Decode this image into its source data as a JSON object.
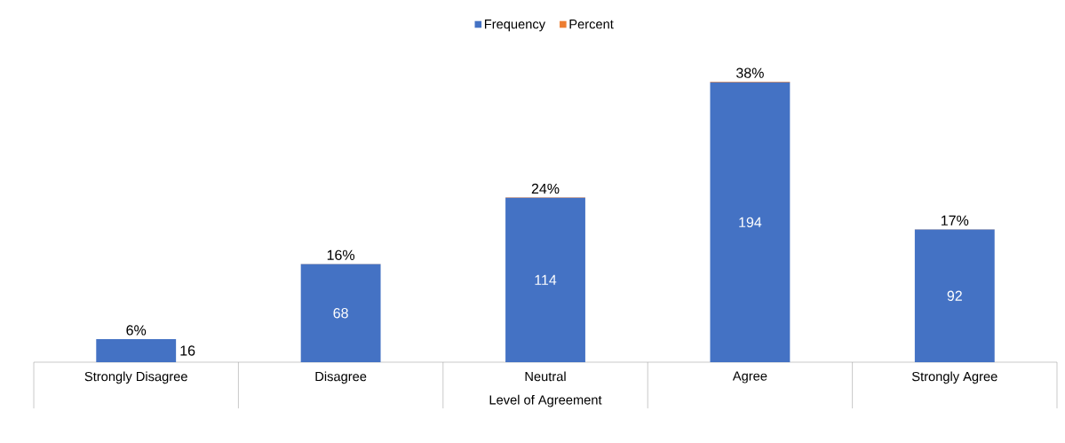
{
  "chart_data": {
    "type": "bar",
    "stacked": true,
    "xlabel": "Level of Agreement",
    "legend": "top",
    "categories": [
      "Strongly Disagree",
      "Disagree",
      "Neutral",
      "Agree",
      "Strongly Agree"
    ],
    "series": [
      {
        "name": "Frequency",
        "color": "#4472c4",
        "values": [
          16,
          68,
          114,
          194,
          92
        ],
        "value_labels": [
          "16",
          "68",
          "114",
          "194",
          "92"
        ]
      },
      {
        "name": "Percent",
        "color": "#ed7d31",
        "values": [
          0.06,
          0.16,
          0.24,
          0.38,
          0.17
        ],
        "value_labels": [
          "6%",
          "16%",
          "24%",
          "38%",
          "17%"
        ]
      }
    ]
  }
}
